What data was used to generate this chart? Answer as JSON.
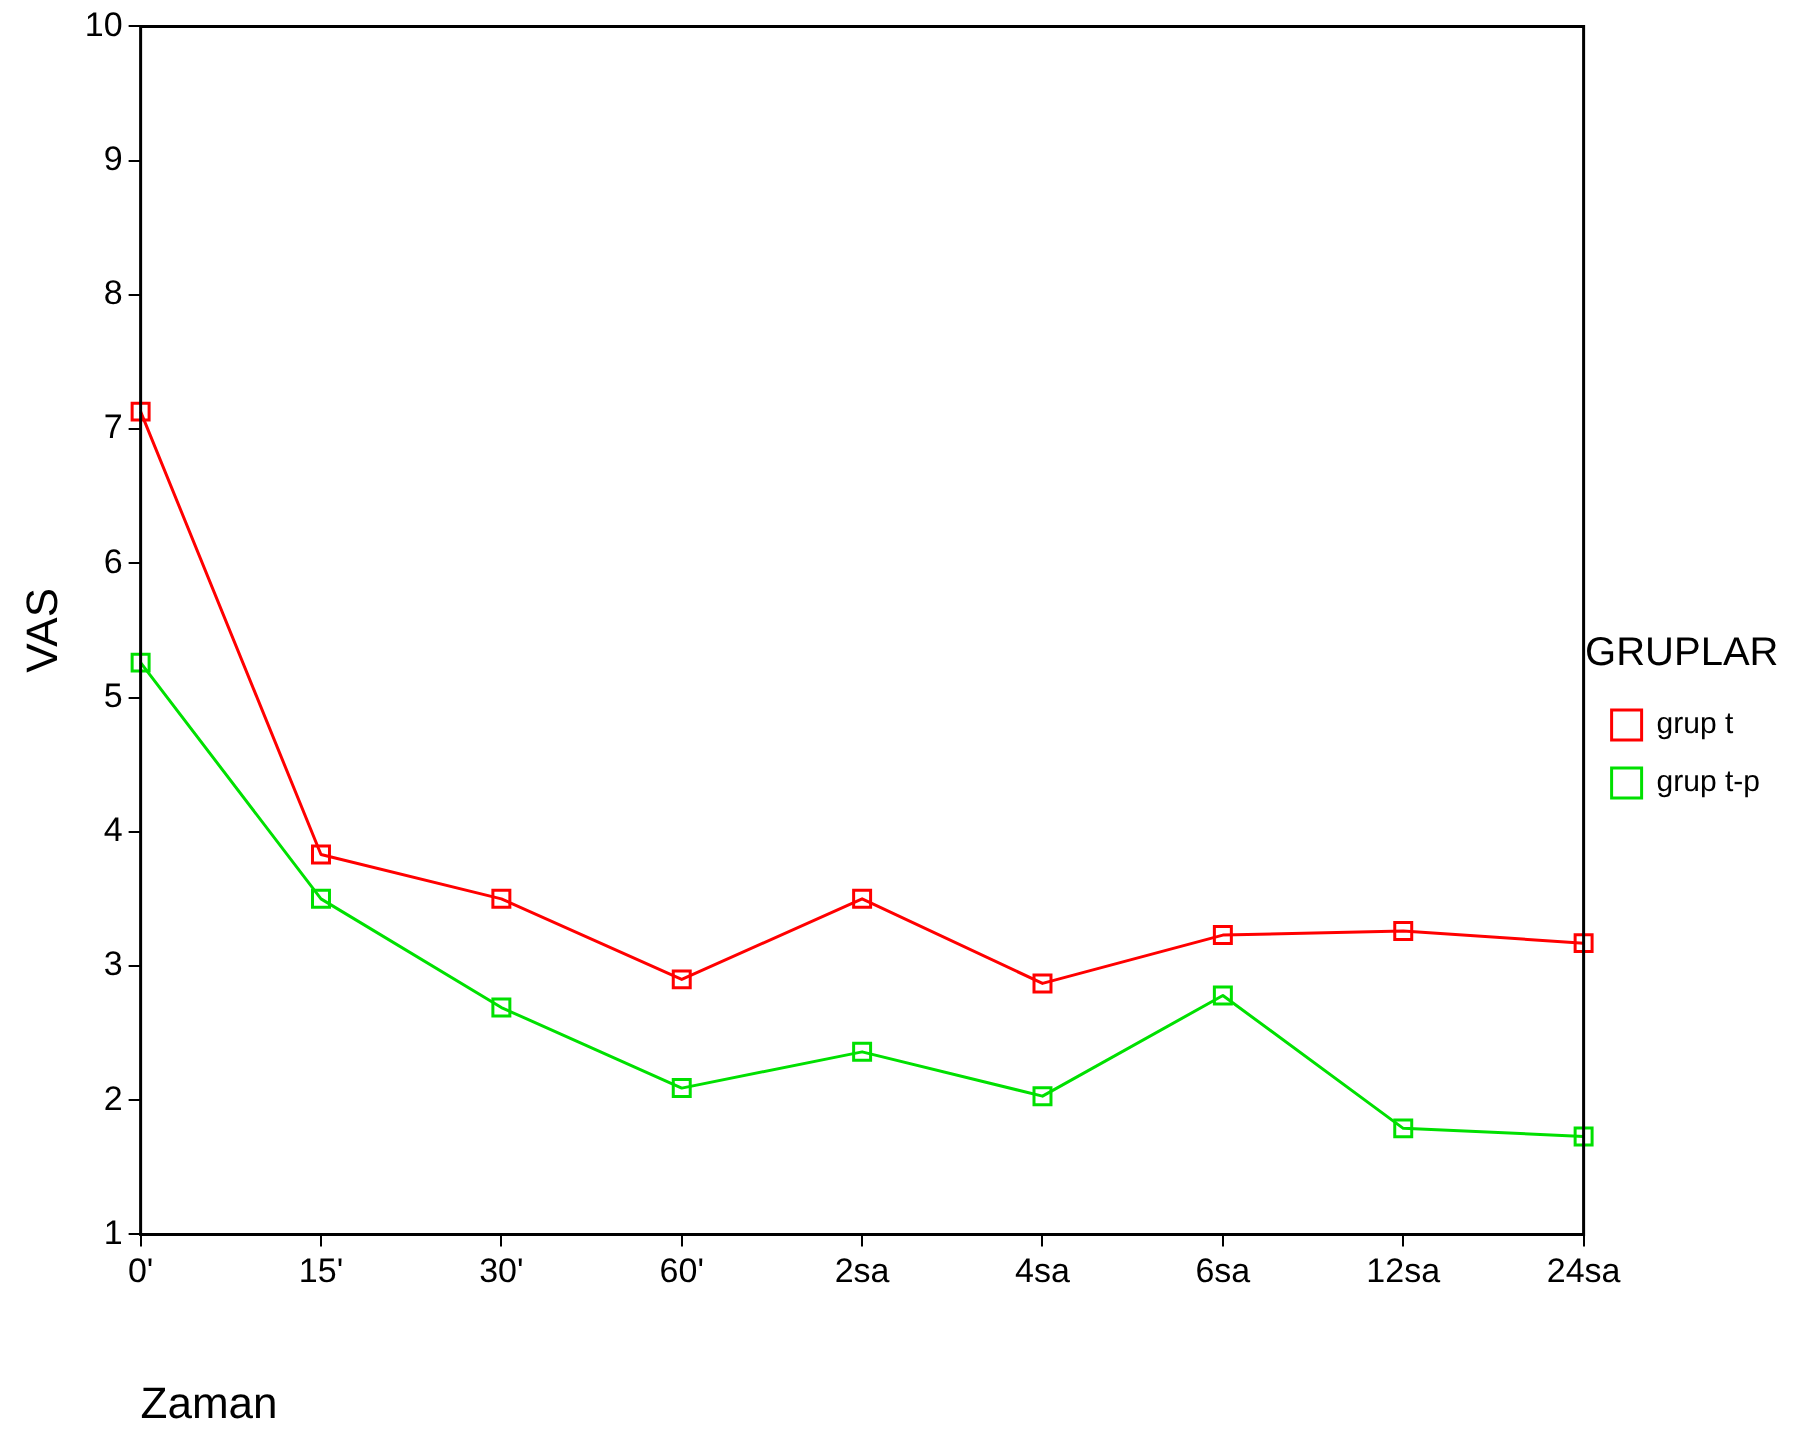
{
  "chart_data": {
    "type": "line",
    "xlabel": "Zaman",
    "ylabel": "VAS",
    "legend_title": "GRUPLAR",
    "categories": [
      "0'",
      "15'",
      "30'",
      "60'",
      "2sa",
      "4sa",
      "6sa",
      "12sa",
      "24sa"
    ],
    "series": [
      {
        "name": "grup t",
        "color": "#ff0000",
        "values": [
          7.13,
          3.83,
          3.5,
          2.9,
          3.5,
          2.87,
          3.23,
          3.26,
          3.17
        ]
      },
      {
        "name": "grup t-p",
        "color": "#00e000",
        "values": [
          5.26,
          3.5,
          2.69,
          2.09,
          2.36,
          2.03,
          2.78,
          1.79,
          1.73
        ]
      }
    ],
    "ylim": [
      1,
      10
    ],
    "yticks": [
      1,
      2,
      3,
      4,
      5,
      6,
      7,
      8,
      9,
      10
    ],
    "grid": false,
    "legend": "right",
    "marker": "square",
    "line_style": "solid"
  }
}
